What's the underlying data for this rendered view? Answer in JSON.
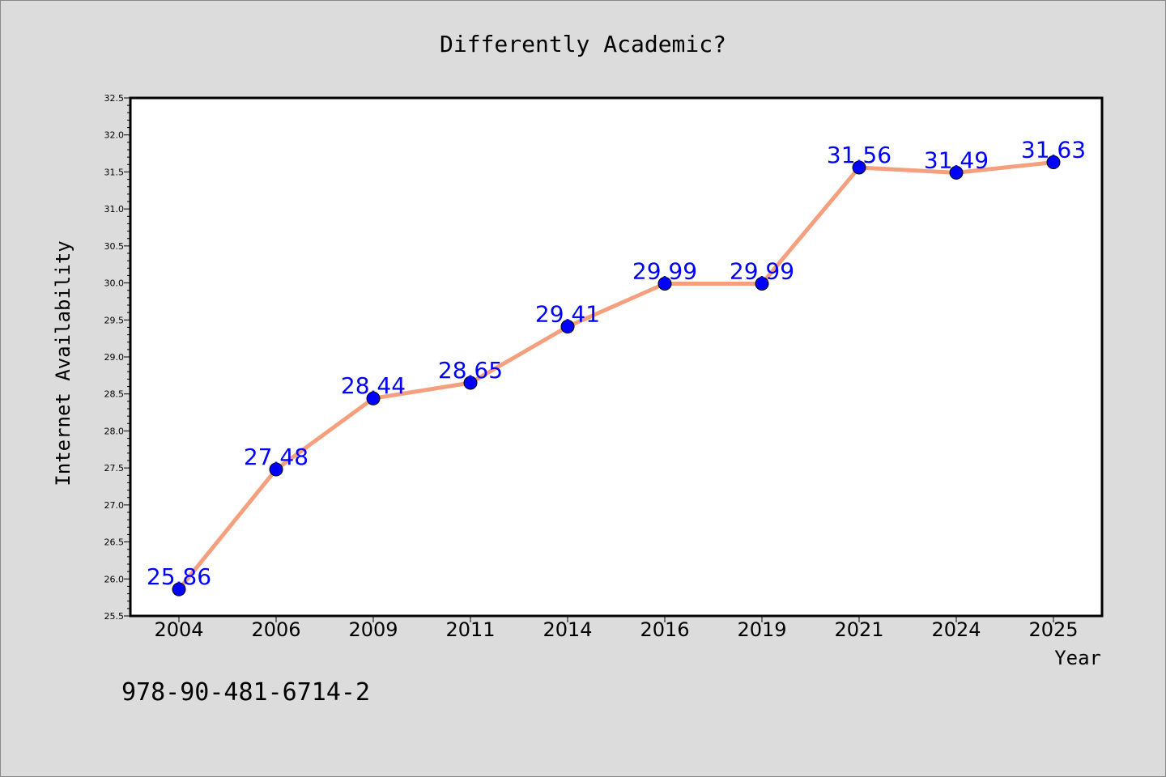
{
  "chart_data": {
    "type": "line",
    "title": "Differently Academic?",
    "xlabel": "Year",
    "ylabel": "Internet Availability",
    "categories": [
      "2004",
      "2006",
      "2009",
      "2011",
      "2014",
      "2016",
      "2019",
      "2021",
      "2024",
      "2025"
    ],
    "series": [
      {
        "values": [
          25.86,
          27.48,
          28.44,
          28.65,
          29.41,
          29.99,
          29.99,
          31.56,
          31.49,
          31.63
        ],
        "labels": [
          "25.86",
          "27.48",
          "28.44",
          "28.65",
          "29.41",
          "29.99",
          "29.99",
          "31.56",
          "31.49",
          "31.63"
        ],
        "line_color": "#f4a07e",
        "marker_color": "#0000ff"
      }
    ],
    "ylim": [
      25.5,
      32.5
    ],
    "yticks": [
      "25.5",
      "26.0",
      "26.5",
      "27.0",
      "27.5",
      "28.0",
      "28.5",
      "29.0",
      "29.5",
      "30.0",
      "30.5",
      "31.0",
      "31.5",
      "32.0",
      "32.5"
    ],
    "grid": false,
    "label_color": "#0000ff"
  },
  "footer": {
    "isbn": "978-90-481-6714-2"
  }
}
